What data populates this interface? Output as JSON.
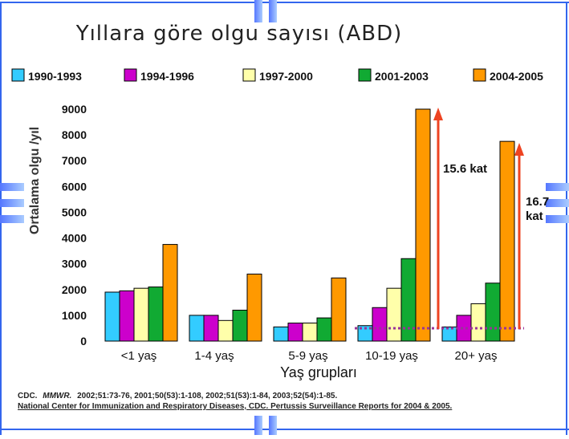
{
  "chart_data": {
    "type": "bar",
    "title": "Yıllara göre olgu sayısı (ABD)",
    "xlabel": "Yaş grupları",
    "ylabel": "Ortalama olgu /yıl",
    "ylim": [
      0,
      9000
    ],
    "yticks": [
      "0",
      "1000",
      "2000",
      "3000",
      "4000",
      "5000",
      "6000",
      "7000",
      "8000",
      "9000"
    ],
    "categories": [
      "<1 yaş",
      "1-4 yaş",
      "5-9 yaş",
      "10-19 yaş",
      "20+ yaş"
    ],
    "series": [
      {
        "name": "1990-1993",
        "color": "#33ccff",
        "values": [
          1900,
          1000,
          550,
          600,
          550
        ]
      },
      {
        "name": "1994-1996",
        "color": "#cc00cc",
        "values": [
          1950,
          1000,
          700,
          1300,
          1000
        ]
      },
      {
        "name": "1997-2000",
        "color": "#ffffaa",
        "values": [
          2050,
          800,
          700,
          2050,
          1450
        ]
      },
      {
        "name": "2001-2003",
        "color": "#11aa33",
        "values": [
          2100,
          1200,
          900,
          3200,
          2250
        ]
      },
      {
        "name": "2004-2005",
        "color": "#ff9900",
        "values": [
          3750,
          2600,
          2450,
          9000,
          7750
        ]
      }
    ],
    "legend": "top",
    "grid": false,
    "annotations": [
      "15.6 kat",
      "16.7 kat"
    ],
    "annotation_colors": {
      "arrow": "#ee4422",
      "baseline": "#993399"
    }
  },
  "source": {
    "line1_prefix": "CDC.",
    "line1_journal": "MMWR.",
    "line1_refs": "2002;51:73-76, 2001;50(53):1-108, 2002;51(53):1-84, 2003;52(54):1-85.",
    "line2": "National Center for Immunization and Respiratory Diseases, CDC. Pertussis Surveillance Reports for 2004 & 2005."
  },
  "colors": {
    "page_bg": "#ffffff",
    "title": "#222222",
    "decor_blue": "#3366ee",
    "decor_blue_light": "#99bbff"
  },
  "icons": [
    "decorative-arrow-tab-icon"
  ]
}
